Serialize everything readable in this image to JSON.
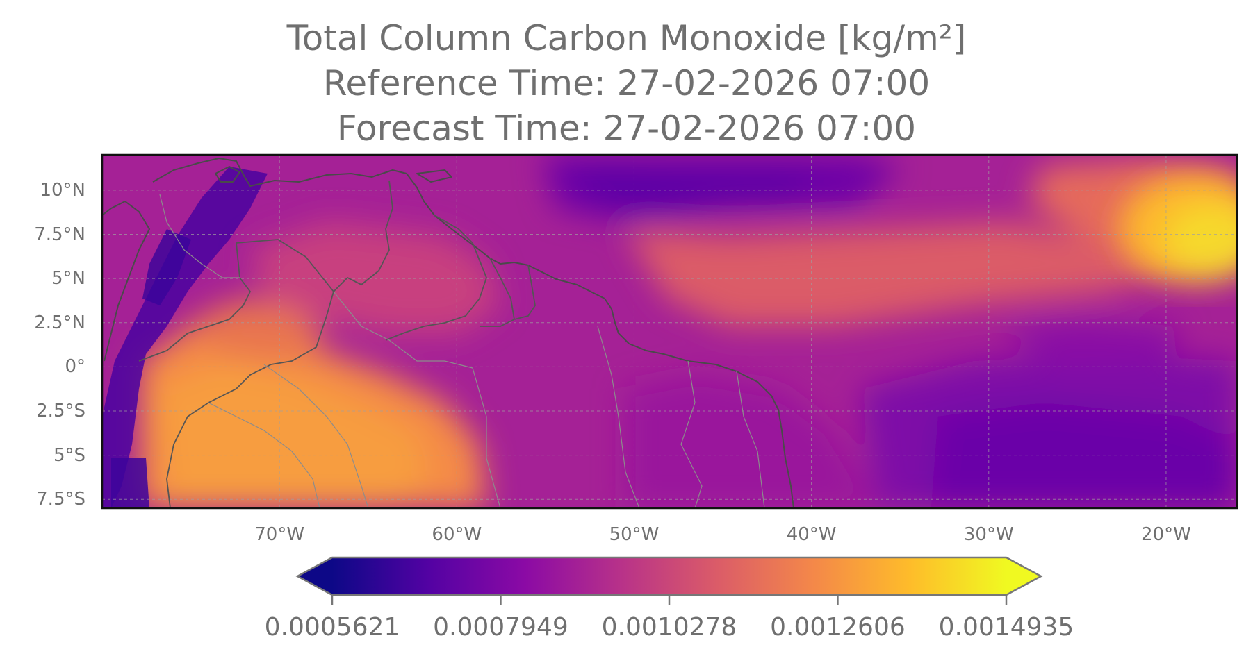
{
  "title": {
    "line1": "Total Column Carbon Monoxide [kg/m²]",
    "line2": "Reference Time: 27-02-2026 07:00",
    "line3": "Forecast Time: 27-02-2026 07:00"
  },
  "map": {
    "extent": {
      "lon_min": -80,
      "lon_max": -16,
      "lat_min": -8,
      "lat_max": 12
    },
    "colormap": "plasma",
    "lat_ticks": [
      {
        "value": 10,
        "label": "10°N"
      },
      {
        "value": 7.5,
        "label": "7.5°N"
      },
      {
        "value": 5,
        "label": "5°N"
      },
      {
        "value": 2.5,
        "label": "2.5°N"
      },
      {
        "value": 0,
        "label": "0°"
      },
      {
        "value": -2.5,
        "label": "2.5°S"
      },
      {
        "value": -5,
        "label": "5°S"
      },
      {
        "value": -7.5,
        "label": "7.5°S"
      }
    ],
    "lon_ticks": [
      {
        "value": -70,
        "label": "70°W"
      },
      {
        "value": -60,
        "label": "60°W"
      },
      {
        "value": -50,
        "label": "50°W"
      },
      {
        "value": -40,
        "label": "40°W"
      },
      {
        "value": -30,
        "label": "30°W"
      },
      {
        "value": -20,
        "label": "20°W"
      }
    ],
    "gridlines": true,
    "coastlines": true,
    "borders": true
  },
  "colorbar": {
    "orientation": "horizontal",
    "extend": "both",
    "min": 0.0005621,
    "max": 0.0014935,
    "ticks": [
      "0.0005621",
      "0.0007949",
      "0.0010278",
      "0.0012606",
      "0.0014935"
    ],
    "colors": [
      "#0d0887",
      "#5302a3",
      "#8b0aa5",
      "#b83289",
      "#db5c68",
      "#f48849",
      "#febc2a",
      "#f0f921"
    ]
  }
}
